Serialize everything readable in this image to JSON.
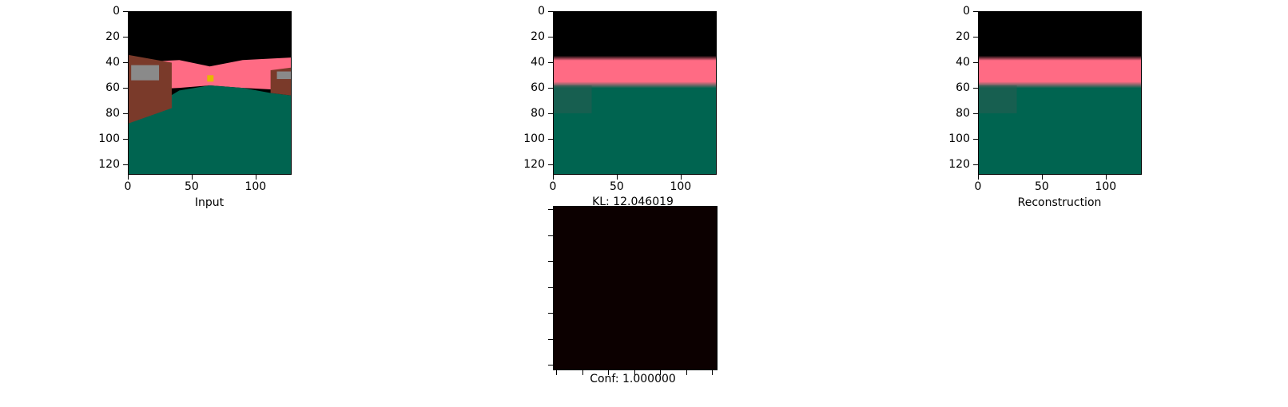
{
  "chart_data": [
    {
      "type": "image",
      "panel": "input",
      "xlabel": "Input",
      "xlim": [
        0,
        127
      ],
      "ylim": [
        127,
        0
      ],
      "xticks": [
        0,
        50,
        100
      ],
      "yticks": [
        0,
        20,
        40,
        60,
        80,
        100,
        120
      ],
      "xtick_labels": [
        "0",
        "50",
        "100"
      ],
      "ytick_labels": [
        "0",
        "20",
        "40",
        "60",
        "80",
        "100",
        "120"
      ],
      "colors": {
        "sky": "#000000",
        "wall": "#ff6b84",
        "floor": "#006450",
        "box": "#7a3a2a",
        "window": "#8a8a8a",
        "item": "#e6b800"
      }
    },
    {
      "type": "image",
      "panel": "kl-latent",
      "title": "KL: 12.046019",
      "xlim": [
        0,
        127
      ],
      "ylim": [
        127,
        0
      ],
      "xticks": [
        0,
        50,
        100
      ],
      "yticks": [
        0,
        20,
        40,
        60,
        80,
        100,
        120
      ],
      "xtick_labels": [
        "0",
        "50",
        "100"
      ],
      "ytick_labels": [
        "0",
        "20",
        "40",
        "60",
        "80",
        "100",
        "120"
      ],
      "colors": {
        "sky": "#000000",
        "wall": "#ff6b84",
        "floor": "#006450"
      }
    },
    {
      "type": "image",
      "panel": "reconstruction",
      "xlabel": "Reconstruction",
      "xlim": [
        0,
        127
      ],
      "ylim": [
        127,
        0
      ],
      "xticks": [
        0,
        50,
        100
      ],
      "yticks": [
        0,
        20,
        40,
        60,
        80,
        100,
        120
      ],
      "xtick_labels": [
        "0",
        "50",
        "100"
      ],
      "ytick_labels": [
        "0",
        "20",
        "40",
        "60",
        "80",
        "100",
        "120"
      ],
      "colors": {
        "sky": "#000000",
        "wall": "#ff6b84",
        "floor": "#006450"
      }
    },
    {
      "type": "heatmap",
      "panel": "confidence",
      "xlabel": "Conf: 1.000000",
      "xtick_labels": [],
      "ytick_labels": [],
      "colors": {
        "fill": "#0c0000"
      }
    }
  ]
}
